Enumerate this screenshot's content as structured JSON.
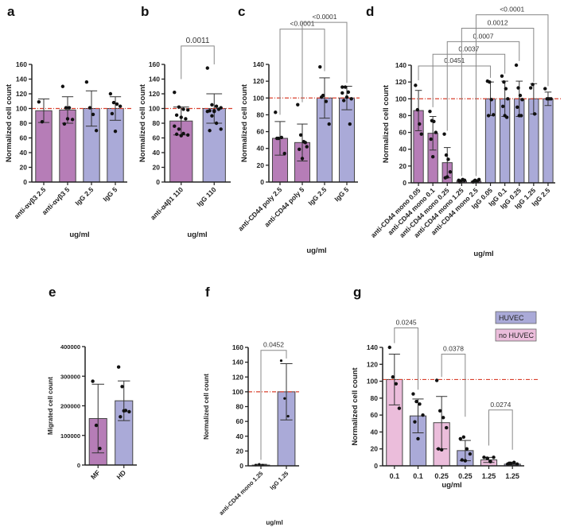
{
  "colors": {
    "anti": "#b67db7",
    "igg": "#aaaad8",
    "no_huvec": "#ebbddb",
    "huvec": "#aaaad8",
    "reference_line": "#d9402e"
  },
  "chart_data": [
    {
      "panel": "a",
      "type": "bar",
      "ylabel": "Normalized cell count",
      "xlabel": "ug/ml",
      "ylim": [
        0,
        160
      ],
      "yticks": [
        0,
        20,
        40,
        60,
        80,
        100,
        120,
        140,
        160
      ],
      "reference_line": 100,
      "categories": [
        "anti-αvβ3 2.5",
        "anti-αvβ3 5",
        "IgG 2.5",
        "IgG 5"
      ],
      "colors": [
        "anti",
        "anti",
        "igg",
        "igg"
      ],
      "values": [
        97,
        98,
        100,
        100
      ],
      "errors": [
        16,
        18,
        24,
        16
      ],
      "points": [
        [
          109,
          82
        ],
        [
          130,
          101,
          101,
          85,
          79,
          86
        ],
        [
          136,
          101,
          92,
          70
        ],
        [
          120,
          108,
          106,
          103,
          93,
          69
        ]
      ],
      "brackets": []
    },
    {
      "panel": "b",
      "type": "bar",
      "ylabel": "Normalized cell count",
      "xlabel": "ug/ml",
      "ylim": [
        0,
        160
      ],
      "yticks": [
        0,
        20,
        40,
        60,
        80,
        100,
        120,
        140,
        160
      ],
      "reference_line": 100,
      "categories": [
        "anti-α4β1 110",
        "IgG 110"
      ],
      "colors": [
        "anti",
        "igg"
      ],
      "values": [
        83,
        100
      ],
      "errors": [
        19,
        20
      ],
      "points": [
        [
          122,
          102,
          99,
          98,
          91,
          88,
          86,
          76,
          72,
          66,
          64,
          65,
          63
        ],
        [
          155,
          105,
          103,
          101,
          97,
          97,
          99,
          96,
          90,
          80,
          72,
          70,
          96
        ]
      ],
      "brackets": [
        {
          "from": 0,
          "to": 1,
          "label": "0.0011",
          "top": 185,
          "left_leg": 140,
          "right_leg": 160
        }
      ]
    },
    {
      "panel": "c",
      "type": "bar",
      "ylabel": "Normalized cell count",
      "xlabel": "ug/ml",
      "ylim": [
        0,
        140
      ],
      "yticks": [
        0,
        20,
        40,
        60,
        80,
        100,
        120,
        140
      ],
      "reference_line": 100,
      "categories": [
        "anti-CD44 poly 2.5",
        "anti-CD44 poly 5",
        "IgG 2.5",
        "IgG 5"
      ],
      "colors": [
        "anti",
        "anti",
        "igg",
        "igg"
      ],
      "values": [
        52,
        47,
        100,
        100
      ],
      "errors": [
        20,
        22,
        24,
        14
      ],
      "points": [
        [
          83,
          52,
          53,
          34,
          52
        ],
        [
          92,
          56,
          48,
          42,
          39,
          28,
          47
        ],
        [
          137,
          103,
          96,
          69,
          101
        ],
        [
          113,
          113,
          107,
          99,
          97,
          101,
          69,
          106
        ]
      ],
      "brackets": [
        {
          "from": 0,
          "to": 2,
          "label": "<0.0001",
          "top": 182,
          "left_leg": 80,
          "right_leg": 132
        },
        {
          "from": 1,
          "to": 3,
          "label": "<0.0001",
          "top": 190,
          "left_leg": 95,
          "right_leg": 118
        }
      ]
    },
    {
      "panel": "d",
      "type": "bar",
      "ylabel": "Normalized cell count",
      "xlabel": "ug/ml",
      "ylim": [
        0,
        140
      ],
      "yticks": [
        0,
        20,
        40,
        60,
        80,
        100,
        120,
        140
      ],
      "reference_line": 100,
      "categories": [
        "anti-CD44 mono 0.05",
        "anti-CD44 mono 0.1",
        "anti-CD44 mono 0.25",
        "anti-CD44 mono 1.25",
        "anti-CD44 mono 2.5",
        "IgG 0.05",
        "IgG 0.1",
        "IgG 0.25",
        "IgG 1.25",
        "IgG 2.5"
      ],
      "colors": [
        "anti",
        "anti",
        "anti",
        "anti",
        "anti",
        "igg",
        "igg",
        "igg",
        "igg",
        "igg"
      ],
      "values": [
        86,
        59,
        24,
        2,
        2,
        100,
        100,
        100,
        100,
        100
      ],
      "errors": [
        24,
        20,
        18,
        1,
        1,
        20,
        21,
        21,
        18,
        8
      ],
      "points": [
        [
          116,
          87,
          70,
          58
        ],
        [
          85,
          74,
          73,
          60,
          52,
          31
        ],
        [
          58,
          33,
          28,
          13,
          6,
          7
        ],
        [
          3,
          2,
          4,
          3,
          1
        ],
        [
          1,
          3,
          2,
          4,
          2
        ],
        [
          121,
          120,
          99,
          81,
          80
        ],
        [
          127,
          120,
          112,
          100,
          91,
          80,
          78
        ],
        [
          140,
          113,
          104,
          99,
          90,
          80,
          80
        ],
        [
          113,
          117,
          82
        ],
        [
          112,
          100,
          100,
          100
        ]
      ],
      "brackets": [
        {
          "from": 0,
          "to": 5,
          "label": "0.0451",
          "top": 139,
          "left_leg": 122,
          "right_leg": 125
        },
        {
          "from": 1,
          "to": 6,
          "label": "0.0037",
          "top": 153,
          "left_leg": 90,
          "right_leg": 130
        },
        {
          "from": 2,
          "to": 7,
          "label": "0.0007",
          "top": 168,
          "left_leg": 62,
          "right_leg": 145
        },
        {
          "from": 3,
          "to": 8,
          "label": "0.0012",
          "top": 184,
          "left_leg": 8,
          "right_leg": 120
        },
        {
          "from": 4,
          "to": 9,
          "label": "<0.0001",
          "top": 200,
          "left_leg": 8,
          "right_leg": 115
        }
      ]
    },
    {
      "panel": "e",
      "type": "bar",
      "ylabel": "Migrated cell count",
      "xlabel": "",
      "ylim": [
        0,
        400000
      ],
      "yticks": [
        0,
        100000,
        200000,
        300000,
        400000
      ],
      "reference_line": null,
      "categories": [
        "MF",
        "HD"
      ],
      "colors": [
        "anti",
        "igg"
      ],
      "values": [
        157000,
        217000
      ],
      "errors": [
        116000,
        67000
      ],
      "points": [
        [
          283000,
          134000,
          56000
        ],
        [
          331000,
          265000,
          184000,
          180000,
          163000,
          183000
        ]
      ],
      "brackets": []
    },
    {
      "panel": "f",
      "type": "bar",
      "ylabel": "Normalized cell count",
      "xlabel": "ug/ml",
      "ylim": [
        0,
        160
      ],
      "yticks": [
        0,
        20,
        40,
        60,
        80,
        100,
        120,
        140,
        160
      ],
      "reference_line": 100,
      "categories": [
        "anti-CD44 mono 1.25",
        "IgG 1.25"
      ],
      "colors": [
        "anti",
        "igg"
      ],
      "values": [
        1,
        100
      ],
      "errors": [
        1,
        38
      ],
      "points": [
        [
          1,
          2,
          1
        ],
        [
          142,
          91,
          67
        ]
      ],
      "brackets": [
        {
          "from": 0,
          "to": 1,
          "label": "0.0452",
          "top": 156,
          "left_leg": 8,
          "right_leg": 145
        }
      ]
    },
    {
      "panel": "g",
      "type": "bar",
      "ylabel": "Normalized cell count",
      "xlabel": "ug/ml",
      "ylim": [
        0,
        140
      ],
      "yticks": [
        0,
        20,
        40,
        60,
        80,
        100,
        120,
        140
      ],
      "reference_line": 102,
      "categories": [
        "0.1",
        "0.1",
        "0.25",
        "0.25",
        "1.25",
        "1.25"
      ],
      "colors": [
        "no_huvec",
        "huvec",
        "no_huvec",
        "huvec",
        "no_huvec",
        "huvec"
      ],
      "values": [
        102,
        59,
        51,
        18,
        7,
        2
      ],
      "errors": [
        30,
        20,
        31,
        12,
        3,
        1
      ],
      "points": [
        [
          140,
          105,
          97,
          68
        ],
        [
          85,
          76,
          73,
          60,
          52,
          32
        ],
        [
          101,
          65,
          57,
          45,
          20,
          19
        ],
        [
          32,
          34,
          20,
          14,
          7,
          6
        ],
        [
          10,
          9,
          5,
          10
        ],
        [
          2,
          3,
          4,
          2,
          3
        ]
      ],
      "brackets": [
        {
          "from": 0,
          "to": 1,
          "label": "0.0245",
          "top": 163,
          "left_leg": 145,
          "right_leg": 90
        },
        {
          "from": 2,
          "to": 3,
          "label": "0.0378",
          "top": 132,
          "left_leg": 105,
          "right_leg": 58
        },
        {
          "from": 4,
          "to": 5,
          "label": "0.0274",
          "top": 66,
          "left_leg": 24,
          "right_leg": 19
        }
      ],
      "legend": [
        {
          "label": "HUVEC",
          "color": "huvec"
        },
        {
          "label": "no HUVEC",
          "color": "no_huvec"
        }
      ]
    }
  ]
}
